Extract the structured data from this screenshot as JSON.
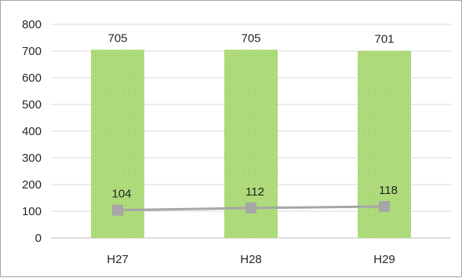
{
  "chart_data": {
    "type": "bar",
    "categories": [
      "H27",
      "H28",
      "H29"
    ],
    "series": [
      {
        "kind": "bar",
        "values": [
          705,
          705,
          701
        ],
        "labels": [
          "705",
          "705",
          "701"
        ],
        "color": "#92d050"
      },
      {
        "kind": "line",
        "values": [
          104,
          112,
          118
        ],
        "labels": [
          "104",
          "112",
          "118"
        ],
        "color": "#a6a6a6"
      }
    ],
    "ylim": [
      0,
      800
    ],
    "yticks": [
      "0",
      "100",
      "200",
      "300",
      "400",
      "500",
      "600",
      "700",
      "800"
    ],
    "grid": true,
    "legend": "none",
    "title": "",
    "xlabel": "",
    "ylabel": ""
  }
}
